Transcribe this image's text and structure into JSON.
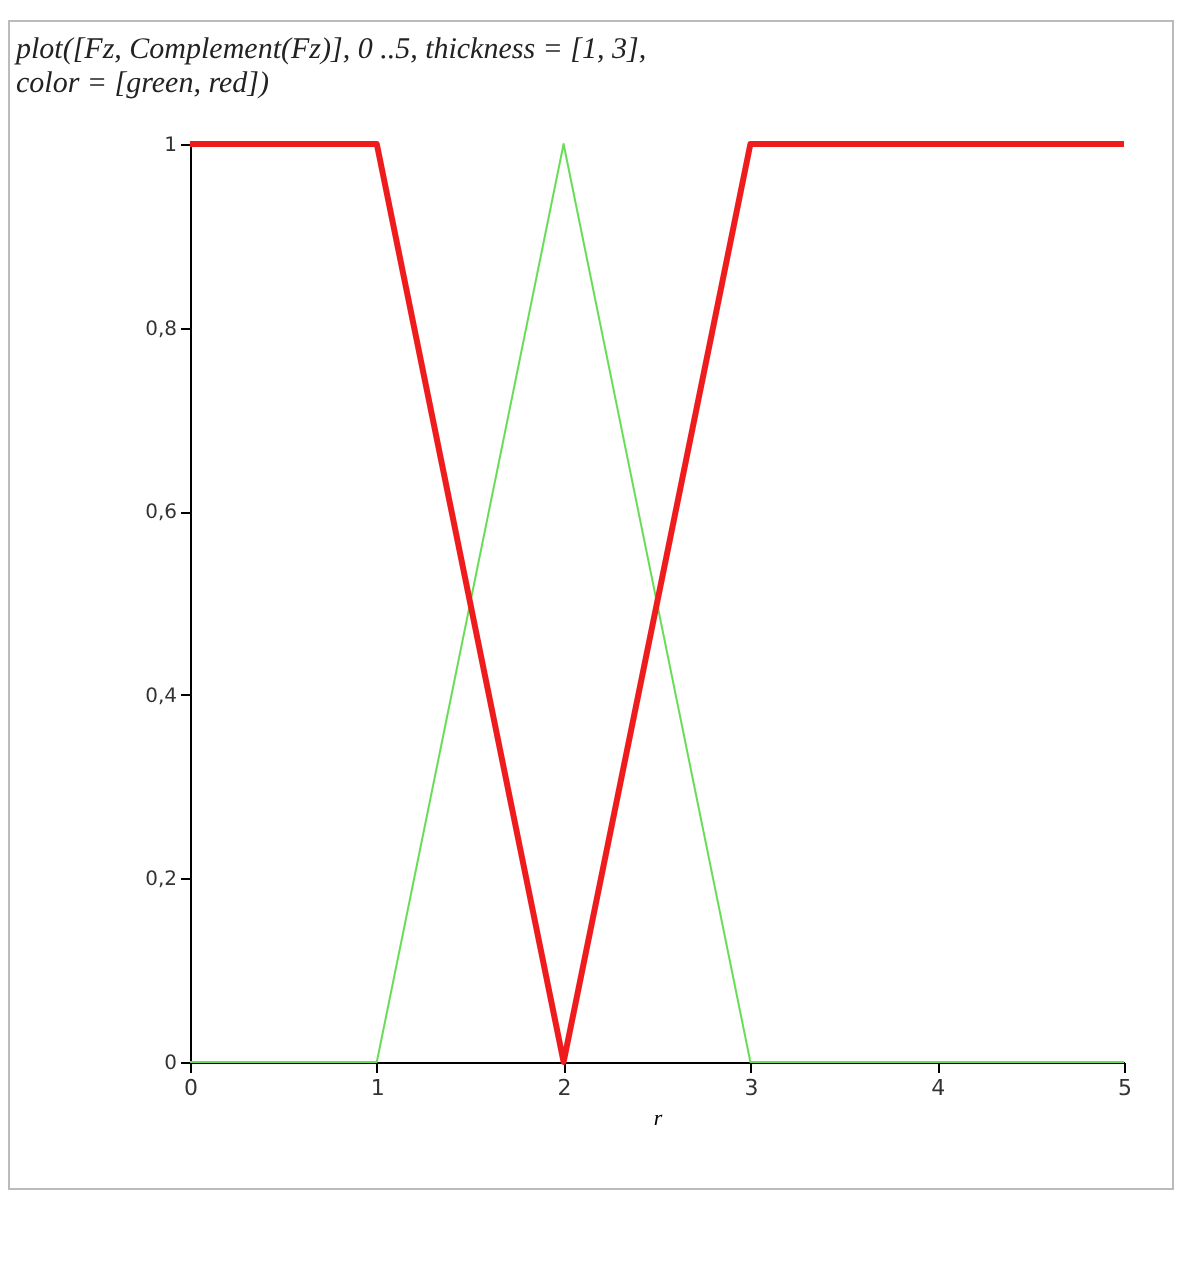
{
  "chart_data": {
    "type": "line",
    "title": "plot([Fz, Complement(Fz)], 0 ..5, thickness = [1, 3],",
    "subtitle": "color = [green, red])",
    "xlabel": "r",
    "x": [
      0,
      1,
      2,
      3,
      5
    ],
    "series": [
      {
        "color": "#66dd55",
        "values": [
          0,
          0,
          1,
          0,
          0
        ]
      },
      {
        "color": "#ee1c1c",
        "values": [
          1,
          1,
          0,
          1,
          1
        ]
      }
    ],
    "xlim": [
      0,
      5
    ],
    "xticks": [
      0,
      1,
      2,
      3,
      4,
      5
    ],
    "ylim": [
      0,
      1
    ],
    "yticks": [
      {
        "value": 0,
        "label": "0"
      },
      {
        "value": 0.2,
        "label": "0,2"
      },
      {
        "value": 0.4,
        "label": "0,4"
      },
      {
        "value": 0.6,
        "label": "0,6"
      },
      {
        "value": 0.8,
        "label": "0,8"
      },
      {
        "value": 1,
        "label": "1"
      }
    ],
    "grid": false,
    "legend": false,
    "line_style": "solid",
    "marker": "none"
  }
}
